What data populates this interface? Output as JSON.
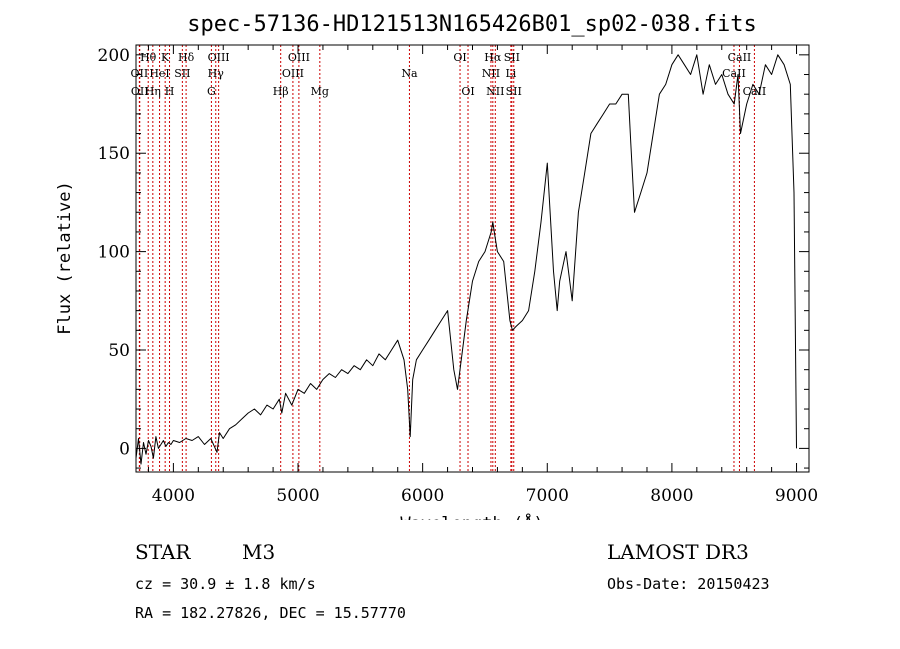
{
  "chart_data": {
    "type": "line",
    "title": "spec-57136-HD121513N165426B01_sp02-038.fits",
    "xlabel": "Wavelength (Å)",
    "ylabel": "Flux (relative)",
    "xlim": [
      3700,
      9100
    ],
    "ylim": [
      -12,
      205
    ],
    "xticks": [
      4000,
      5000,
      6000,
      7000,
      8000,
      9000
    ],
    "yticks": [
      0,
      50,
      100,
      150,
      200
    ],
    "series": [
      {
        "name": "flux",
        "x": [
          3700,
          3720,
          3740,
          3760,
          3780,
          3800,
          3820,
          3840,
          3860,
          3880,
          3900,
          3920,
          3940,
          3960,
          3980,
          4000,
          4050,
          4100,
          4150,
          4200,
          4250,
          4300,
          4350,
          4370,
          4400,
          4450,
          4500,
          4550,
          4600,
          4650,
          4700,
          4750,
          4800,
          4850,
          4870,
          4900,
          4950,
          5000,
          5050,
          5100,
          5150,
          5200,
          5250,
          5300,
          5350,
          5400,
          5450,
          5500,
          5550,
          5600,
          5650,
          5700,
          5750,
          5800,
          5850,
          5880,
          5900,
          5920,
          5950,
          6000,
          6050,
          6100,
          6150,
          6200,
          6250,
          6280,
          6300,
          6350,
          6400,
          6450,
          6500,
          6550,
          6563,
          6580,
          6600,
          6650,
          6700,
          6720,
          6750,
          6800,
          6850,
          6900,
          6950,
          7000,
          7050,
          7080,
          7100,
          7150,
          7200,
          7250,
          7300,
          7350,
          7400,
          7450,
          7500,
          7550,
          7600,
          7650,
          7670,
          7700,
          7750,
          7800,
          7850,
          7900,
          7950,
          8000,
          8050,
          8100,
          8150,
          8200,
          8250,
          8300,
          8350,
          8400,
          8450,
          8500,
          8530,
          8550,
          8600,
          8650,
          8700,
          8750,
          8800,
          8850,
          8900,
          8950,
          8980,
          9000
        ],
        "y": [
          -5,
          5,
          -8,
          3,
          -3,
          4,
          1,
          -5,
          6,
          0,
          2,
          4,
          1,
          3,
          2,
          4,
          3,
          5,
          4,
          6,
          2,
          5,
          -2,
          8,
          5,
          10,
          12,
          15,
          18,
          20,
          17,
          22,
          20,
          25,
          18,
          28,
          22,
          30,
          28,
          33,
          30,
          35,
          38,
          36,
          40,
          38,
          42,
          40,
          45,
          42,
          48,
          45,
          50,
          55,
          45,
          30,
          6,
          35,
          45,
          50,
          55,
          60,
          65,
          70,
          40,
          30,
          40,
          65,
          85,
          95,
          100,
          110,
          115,
          108,
          100,
          95,
          65,
          60,
          62,
          65,
          70,
          90,
          115,
          145,
          90,
          70,
          85,
          100,
          75,
          120,
          140,
          160,
          165,
          170,
          175,
          175,
          180,
          180,
          155,
          120,
          130,
          140,
          160,
          180,
          185,
          195,
          200,
          195,
          190,
          200,
          180,
          195,
          185,
          190,
          180,
          175,
          190,
          160,
          175,
          185,
          180,
          195,
          190,
          200,
          195,
          185,
          130,
          0
        ]
      }
    ],
    "spectral_lines": [
      {
        "label": "Hθ",
        "wavelength": 3798,
        "row": 1
      },
      {
        "label": "OII",
        "wavelength": 3727,
        "row": 2
      },
      {
        "label": "OII",
        "wavelength": 3730,
        "row": 3
      },
      {
        "label": "Hη",
        "wavelength": 3835,
        "row": 3
      },
      {
        "label": "HeI",
        "wavelength": 3889,
        "row": 2
      },
      {
        "label": "K",
        "wavelength": 3934,
        "row": 1
      },
      {
        "label": "H",
        "wavelength": 3969,
        "row": 3
      },
      {
        "label": "SII",
        "wavelength": 4072,
        "row": 2
      },
      {
        "label": "Hδ",
        "wavelength": 4102,
        "row": 1
      },
      {
        "label": "OIII",
        "wavelength": 4363,
        "row": 1
      },
      {
        "label": "Hγ",
        "wavelength": 4340,
        "row": 2
      },
      {
        "label": "G",
        "wavelength": 4305,
        "row": 3
      },
      {
        "label": "Hβ",
        "wavelength": 4861,
        "row": 3
      },
      {
        "label": "OIII",
        "wavelength": 5007,
        "row": 1
      },
      {
        "label": "OIII",
        "wavelength": 4959,
        "row": 2
      },
      {
        "label": "Mg",
        "wavelength": 5175,
        "row": 3
      },
      {
        "label": "Na",
        "wavelength": 5894,
        "row": 2
      },
      {
        "label": "OI",
        "wavelength": 6300,
        "row": 1
      },
      {
        "label": "OI",
        "wavelength": 6364,
        "row": 3
      },
      {
        "label": "Hα",
        "wavelength": 6563,
        "row": 1
      },
      {
        "label": "SII",
        "wavelength": 6716,
        "row": 1
      },
      {
        "label": "NII",
        "wavelength": 6548,
        "row": 2
      },
      {
        "label": "Li",
        "wavelength": 6708,
        "row": 2
      },
      {
        "label": "NII",
        "wavelength": 6583,
        "row": 3
      },
      {
        "label": "SII",
        "wavelength": 6731,
        "row": 3
      },
      {
        "label": "CaII",
        "wavelength": 8542,
        "row": 1
      },
      {
        "label": "CaII",
        "wavelength": 8498,
        "row": 2
      },
      {
        "label": "CaII",
        "wavelength": 8662,
        "row": 3
      }
    ]
  },
  "info": {
    "object_class": "STAR",
    "subclass": "M3",
    "survey": "LAMOST DR3",
    "cz": "cz = 30.9 ± 1.8 km/s",
    "obs_date": "Obs-Date: 20150423",
    "radec": "RA = 182.27826, DEC =  15.57770"
  },
  "colors": {
    "spectrum": "#000000",
    "line_markers": "#cc0000",
    "axes": "#000000"
  }
}
